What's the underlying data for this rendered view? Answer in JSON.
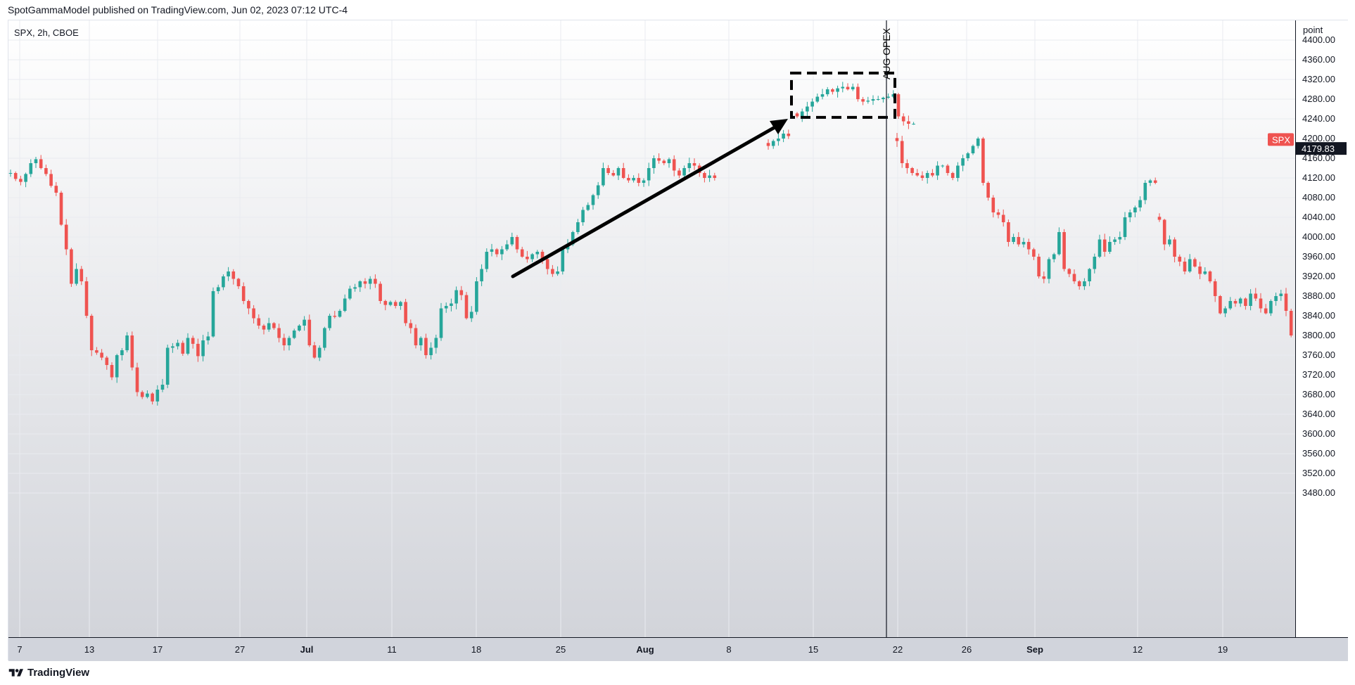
{
  "header": {
    "publisher_line": "SpotGammaModel published on TradingView.com, Jun 02, 2023 07:12 UTC-4"
  },
  "footer": {
    "brand": "TradingView",
    "logo_icon": "tradingview-logo-icon"
  },
  "colors": {
    "up": "#26a69a",
    "down": "#ef5350",
    "text": "#131722",
    "grid": "#e9ebf0",
    "badge": "#ef5350",
    "last_price_bg": "#131722"
  },
  "chart_data": {
    "type": "candlestick",
    "symbol_label": "SPX, 2h, CBOE",
    "price_scale_unit": "point",
    "ylim": [
      3440,
      4440
    ],
    "y_ticks": [
      4400,
      4360,
      4320,
      4280,
      4240,
      4200,
      4160,
      4120,
      4080,
      4040,
      4000,
      3960,
      3920,
      3880,
      3840,
      3800,
      3760,
      3720,
      3680,
      3640,
      3600,
      3560,
      3520,
      3480
    ],
    "x_ticks": [
      {
        "label": "7",
        "bold": false
      },
      {
        "label": "13",
        "bold": false
      },
      {
        "label": "17",
        "bold": false
      },
      {
        "label": "27",
        "bold": false
      },
      {
        "label": "Jul",
        "bold": true
      },
      {
        "label": "11",
        "bold": false
      },
      {
        "label": "18",
        "bold": false
      },
      {
        "label": "25",
        "bold": false
      },
      {
        "label": "Aug",
        "bold": true
      },
      {
        "label": "8",
        "bold": false
      },
      {
        "label": "15",
        "bold": false
      },
      {
        "label": "22",
        "bold": false
      },
      {
        "label": "26",
        "bold": false
      },
      {
        "label": "Sep",
        "bold": true
      },
      {
        "label": "12",
        "bold": false
      },
      {
        "label": "19",
        "bold": false
      }
    ],
    "badges": [
      {
        "label": "SPX",
        "price": 4198
      },
      {
        "label": "4179.83",
        "price": 4179.83
      }
    ],
    "segments_close": [
      [
        4130,
        4118,
        4112,
        4128,
        4150,
        4158,
        4140,
        4128,
        4104,
        4090,
        4025,
        3975,
        3905,
        3935,
        3910,
        3840,
        3770,
        3765,
        3755,
        3740,
        3715,
        3760,
        3770,
        3800,
        3735,
        3685,
        3675,
        3682,
        3666,
        3690,
        3700,
        3775,
        3778,
        3785,
        3763,
        3795,
        3783,
        3758,
        3790,
        3798,
        3890,
        3898,
        3920,
        3930,
        3915,
        3900,
        3870,
        3855,
        3835,
        3820,
        3812,
        3825,
        3815,
        3795,
        3780,
        3795,
        3810,
        3820,
        3832,
        3780,
        3755,
        3775,
        3815,
        3840,
        3838,
        3850,
        3875,
        3895,
        3898,
        3910,
        3905,
        3915,
        3905,
        3870,
        3862,
        3868,
        3860,
        3868,
        3825,
        3815,
        3780,
        3795,
        3760,
        3775,
        3795,
        3855,
        3860,
        3865,
        3892,
        3882,
        3835,
        3848,
        3910,
        3935,
        3970,
        3975,
        3965,
        3975,
        3985,
        4000,
        3975,
        3960,
        3955,
        3965,
        3970,
        3955,
        3935,
        3925,
        3930,
        3975,
        3985,
        4010,
        4030,
        4055,
        4065,
        4085,
        4105,
        4140,
        4130,
        4125,
        4140,
        4120,
        4115,
        4120,
        4110,
        4115,
        4140,
        4160,
        4155,
        4150,
        4158,
        4135,
        4125,
        4140,
        4150,
        4145,
        4130,
        4120,
        4125,
        4120
      ],
      [
        4185,
        4195,
        4200,
        4210,
        4205
      ],
      [
        4245,
        4255,
        4265,
        4275,
        4285,
        4290,
        4300,
        4295,
        4302,
        4305,
        4300,
        4305,
        4280,
        4275,
        4277,
        4280,
        4280,
        4283,
        4285,
        4290,
        4245,
        4235,
        4230,
        4230
      ],
      [
        4195,
        4150,
        4140,
        4130,
        4125,
        4120,
        4130,
        4125,
        4145,
        4145,
        4130,
        4120,
        4145,
        4160,
        4170,
        4185,
        4200,
        4110,
        4080,
        4050,
        4045,
        4030,
        3990,
        4000,
        3985,
        3990,
        3975,
        3960,
        3920,
        3915,
        3955,
        3965,
        4010,
        3935,
        3925,
        3910,
        3900,
        3910,
        3935,
        3960,
        3995,
        3970,
        3990,
        3995,
        4000,
        4040,
        4050,
        4060,
        4075,
        4110,
        4115,
        4110
      ],
      [
        4035,
        3985,
        3995,
        3960,
        3950,
        3930,
        3955,
        3940,
        3925,
        3930,
        3910,
        3880,
        3845,
        3855,
        3870,
        3865,
        3875,
        3860,
        3885,
        3875,
        3855,
        3845,
        3870,
        3880,
        3885,
        3850,
        3800,
        3760,
        3760,
        3780,
        3685
      ]
    ],
    "annotations": [
      {
        "type": "vertical-line",
        "label": "AUG OPEX"
      },
      {
        "type": "arrow",
        "from_price": 3920,
        "to_price": 4240
      },
      {
        "type": "dashed-box",
        "price_range": [
          4243,
          4333
        ]
      }
    ]
  }
}
